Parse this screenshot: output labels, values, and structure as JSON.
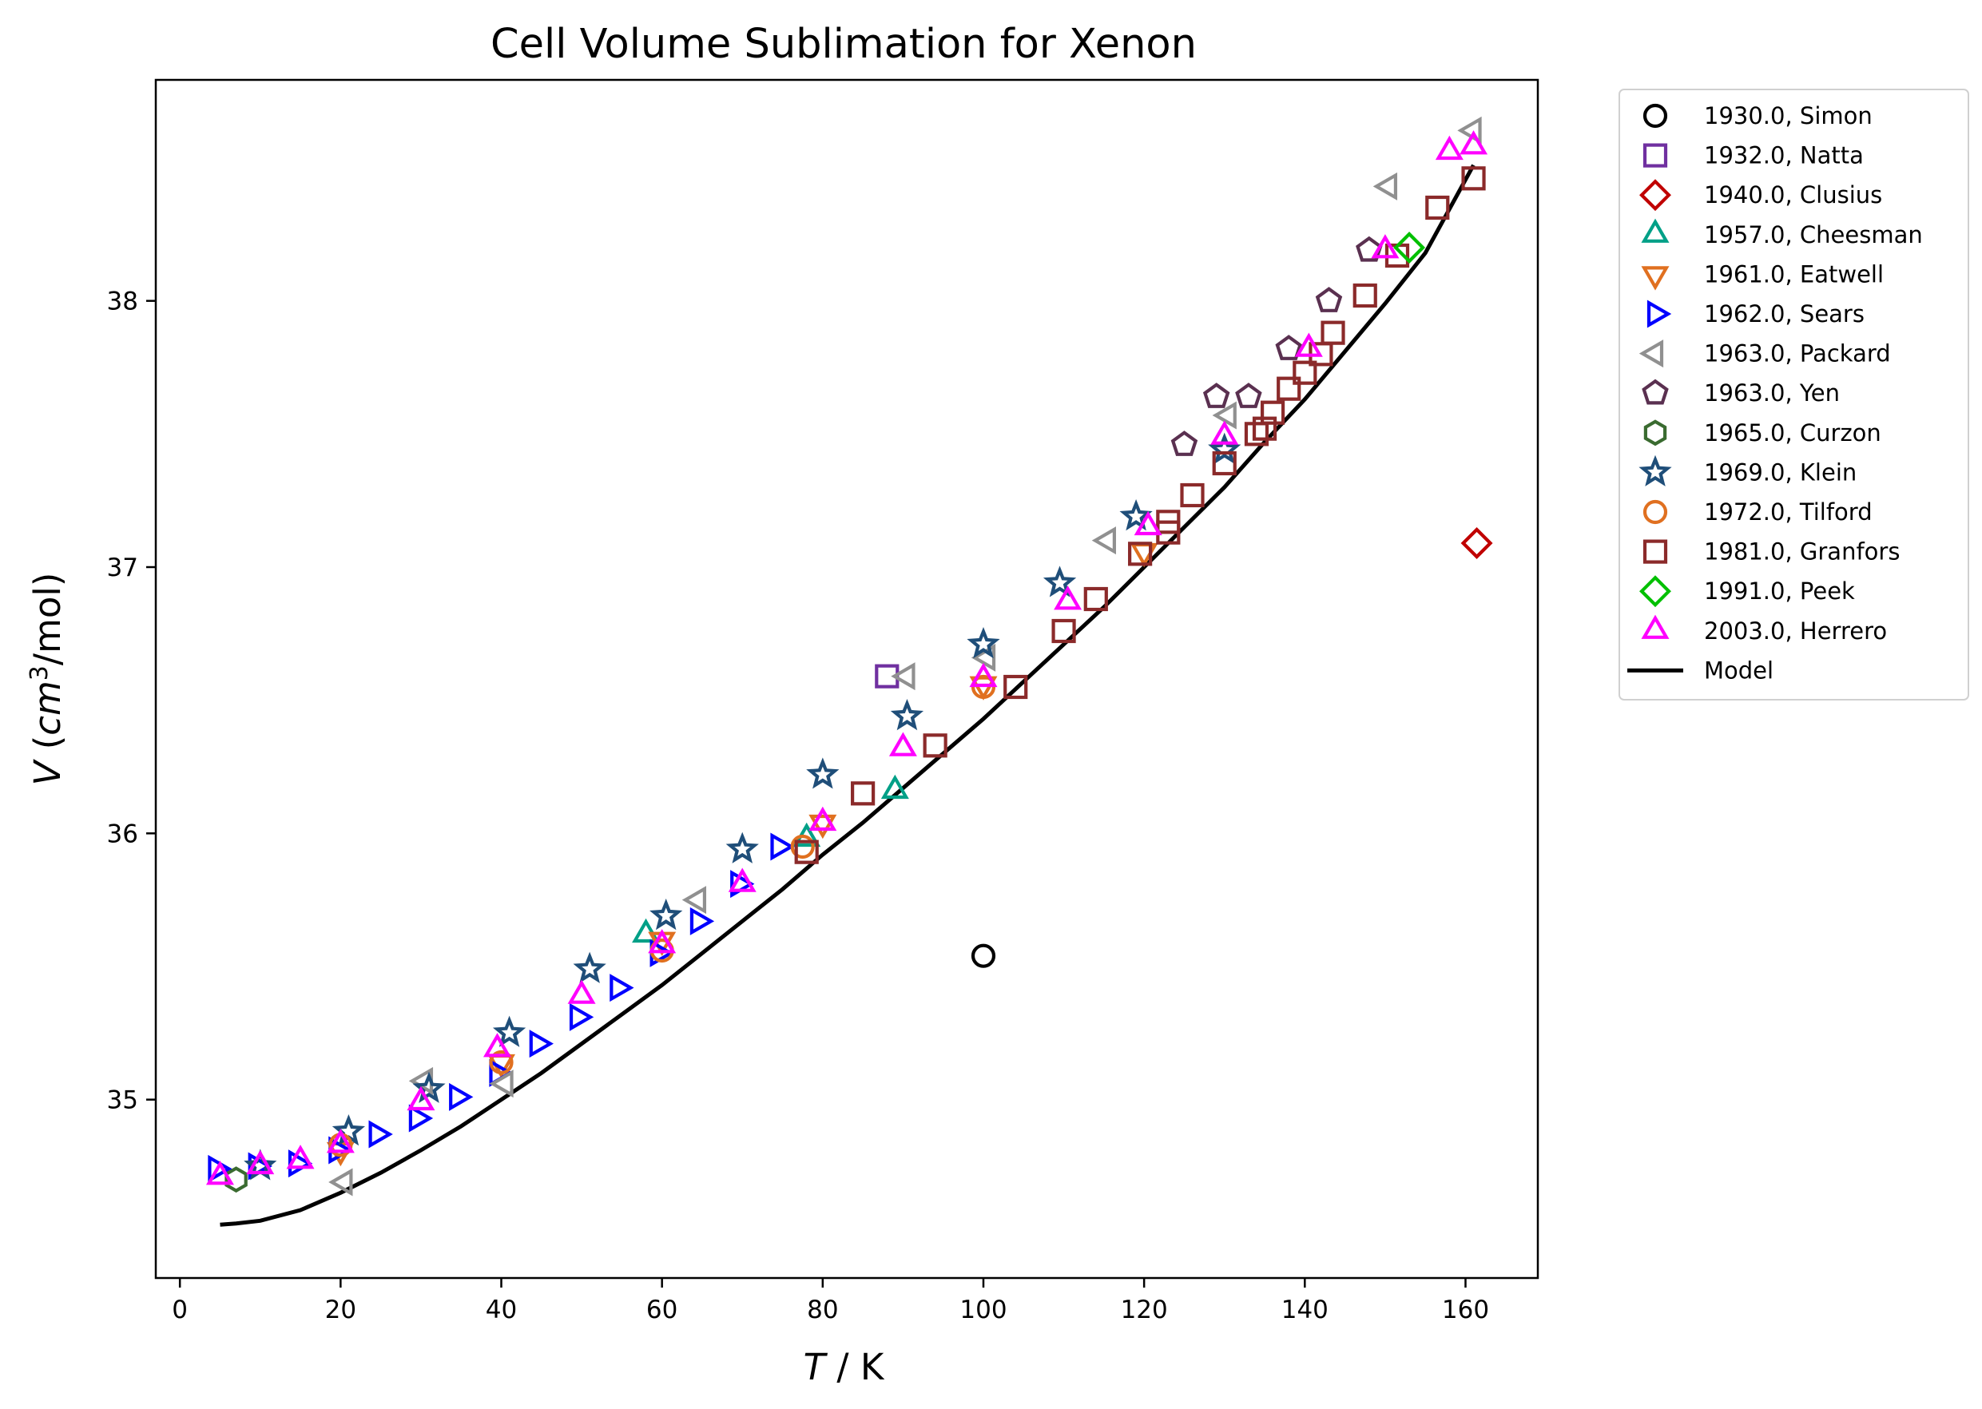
{
  "chart_data": {
    "type": "scatter",
    "title": "Cell Volume Sublimation for Xenon",
    "xlabel_var": "T",
    "xlabel_rest": " / K",
    "ylabel_var": "V",
    "ylabel_unit_pre": " (",
    "ylabel_unit_var": "cm",
    "ylabel_unit_sup": "3",
    "ylabel_unit_post": "/mol)",
    "xlim": [
      -3,
      169
    ],
    "ylim": [
      34.33,
      38.83
    ],
    "xticks": [
      0,
      20,
      40,
      60,
      80,
      100,
      120,
      140,
      160
    ],
    "yticks": [
      35,
      36,
      37,
      38
    ],
    "legend_position": "outside-upper-right",
    "series": [
      {
        "name": "1930.0, Simon",
        "marker": "circle",
        "color": "#000000",
        "points": [
          [
            100,
            35.54
          ]
        ]
      },
      {
        "name": "1932.0, Natta",
        "marker": "square",
        "color": "#7030a0",
        "points": [
          [
            88,
            36.59
          ]
        ]
      },
      {
        "name": "1940.0, Clusius",
        "marker": "diamond",
        "color": "#c00000",
        "points": [
          [
            161.4,
            37.09
          ]
        ]
      },
      {
        "name": "1957.0, Cheesman",
        "marker": "triangle-up",
        "color": "#00a087",
        "points": [
          [
            58,
            35.62
          ],
          [
            78,
            35.98
          ],
          [
            89,
            36.16
          ]
        ]
      },
      {
        "name": "1961.0, Eatwell",
        "marker": "triangle-down",
        "color": "#e07020",
        "points": [
          [
            20,
            34.81
          ],
          [
            40,
            35.14
          ],
          [
            60,
            35.6
          ],
          [
            80,
            36.04
          ],
          [
            100,
            36.56
          ],
          [
            120,
            37.06
          ]
        ]
      },
      {
        "name": "1962.0, Sears",
        "marker": "triangle-right",
        "color": "#0000ff",
        "points": [
          [
            4.5,
            34.74
          ],
          [
            9.5,
            34.75
          ],
          [
            14.5,
            34.76
          ],
          [
            19.5,
            34.81
          ],
          [
            24.5,
            34.87
          ],
          [
            29.5,
            34.93
          ],
          [
            34.5,
            35.01
          ],
          [
            39.5,
            35.1
          ],
          [
            44.5,
            35.21
          ],
          [
            49.5,
            35.31
          ],
          [
            54.5,
            35.42
          ],
          [
            59.5,
            35.55
          ],
          [
            64.5,
            35.67
          ],
          [
            69.5,
            35.81
          ],
          [
            74.5,
            35.95
          ]
        ]
      },
      {
        "name": "1963.0, Packard",
        "marker": "triangle-left",
        "color": "#909090",
        "points": [
          [
            20.5,
            34.69
          ],
          [
            30.5,
            35.07
          ],
          [
            40.5,
            35.06
          ],
          [
            64.5,
            35.75
          ],
          [
            90.5,
            36.59
          ],
          [
            100.5,
            36.66
          ],
          [
            115.5,
            37.1
          ],
          [
            130.5,
            37.57
          ],
          [
            150.5,
            38.43
          ],
          [
            161,
            38.64
          ]
        ]
      },
      {
        "name": "1963.0, Yen",
        "marker": "pentagon",
        "color": "#5a3050",
        "points": [
          [
            125,
            37.46
          ],
          [
            129,
            37.64
          ],
          [
            133,
            37.64
          ],
          [
            138,
            37.82
          ],
          [
            143,
            38.0
          ],
          [
            148,
            38.19
          ]
        ]
      },
      {
        "name": "1965.0, Curzon",
        "marker": "hexagon",
        "color": "#3a6b30",
        "points": [
          [
            7,
            34.7
          ]
        ]
      },
      {
        "name": "1969.0, Klein",
        "marker": "star",
        "color": "#1f4e79",
        "points": [
          [
            10,
            34.75
          ],
          [
            21,
            34.88
          ],
          [
            31,
            35.04
          ],
          [
            41,
            35.25
          ],
          [
            51,
            35.49
          ],
          [
            60.5,
            35.69
          ],
          [
            70,
            35.94
          ],
          [
            80,
            36.22
          ],
          [
            90.5,
            36.44
          ],
          [
            100,
            36.71
          ],
          [
            109.5,
            36.94
          ],
          [
            119,
            37.19
          ],
          [
            130,
            37.44
          ]
        ]
      },
      {
        "name": "1972.0, Tilford",
        "marker": "circle",
        "color": "#e07020",
        "points": [
          [
            20,
            34.83
          ],
          [
            40,
            35.14
          ],
          [
            60,
            35.56
          ],
          [
            77.5,
            35.95
          ],
          [
            100,
            36.55
          ]
        ]
      },
      {
        "name": "1981.0, Granfors",
        "marker": "square",
        "color": "#8b2a2a",
        "points": [
          [
            78,
            35.93
          ],
          [
            85,
            36.15
          ],
          [
            94,
            36.33
          ],
          [
            104,
            36.55
          ],
          [
            110,
            36.76
          ],
          [
            114,
            36.88
          ],
          [
            119.5,
            37.05
          ],
          [
            123,
            37.13
          ],
          [
            123,
            37.17
          ],
          [
            126,
            37.27
          ],
          [
            130,
            37.39
          ],
          [
            134,
            37.5
          ],
          [
            135,
            37.52
          ],
          [
            136,
            37.58
          ],
          [
            138,
            37.67
          ],
          [
            140,
            37.73
          ],
          [
            142,
            37.8
          ],
          [
            143.5,
            37.88
          ],
          [
            147.5,
            38.02
          ],
          [
            151.5,
            38.17
          ],
          [
            156.5,
            38.35
          ],
          [
            161,
            38.46
          ]
        ]
      },
      {
        "name": "1991.0, Peek",
        "marker": "diamond",
        "color": "#00c000",
        "points": [
          [
            153,
            38.2
          ]
        ]
      },
      {
        "name": "2003.0, Herrero",
        "marker": "triangle-up",
        "color": "#ff00ff",
        "points": [
          [
            5,
            34.71
          ],
          [
            10,
            34.75
          ],
          [
            15,
            34.77
          ],
          [
            20,
            34.83
          ],
          [
            30,
            34.99
          ],
          [
            39.5,
            35.19
          ],
          [
            50,
            35.39
          ],
          [
            60,
            35.58
          ],
          [
            70,
            35.81
          ],
          [
            80,
            36.04
          ],
          [
            90,
            36.32
          ],
          [
            100,
            36.58
          ],
          [
            110.5,
            36.87
          ],
          [
            120.5,
            37.15
          ],
          [
            130,
            37.49
          ],
          [
            140.5,
            37.82
          ],
          [
            150,
            38.19
          ],
          [
            158,
            38.56
          ],
          [
            161,
            38.58
          ]
        ]
      }
    ],
    "model": {
      "name": "Model",
      "color": "#000000",
      "points": [
        [
          5,
          34.53
        ],
        [
          7,
          34.535
        ],
        [
          10,
          34.545
        ],
        [
          15,
          34.585
        ],
        [
          20,
          34.65
        ],
        [
          25,
          34.725
        ],
        [
          30,
          34.81
        ],
        [
          35,
          34.9
        ],
        [
          40,
          35.0
        ],
        [
          45,
          35.1
        ],
        [
          50,
          35.21
        ],
        [
          55,
          35.32
        ],
        [
          60,
          35.43
        ],
        [
          65,
          35.55
        ],
        [
          70,
          35.67
        ],
        [
          75,
          35.79
        ],
        [
          80,
          35.92
        ],
        [
          85,
          36.04
        ],
        [
          90,
          36.17
        ],
        [
          95,
          36.3
        ],
        [
          100,
          36.43
        ],
        [
          105,
          36.57
        ],
        [
          110,
          36.71
        ],
        [
          115,
          36.85
        ],
        [
          120,
          37.0
        ],
        [
          125,
          37.15
        ],
        [
          130,
          37.3
        ],
        [
          135,
          37.47
        ],
        [
          140,
          37.63
        ],
        [
          145,
          37.81
        ],
        [
          150,
          37.99
        ],
        [
          155,
          38.18
        ],
        [
          161,
          38.51
        ]
      ]
    }
  }
}
